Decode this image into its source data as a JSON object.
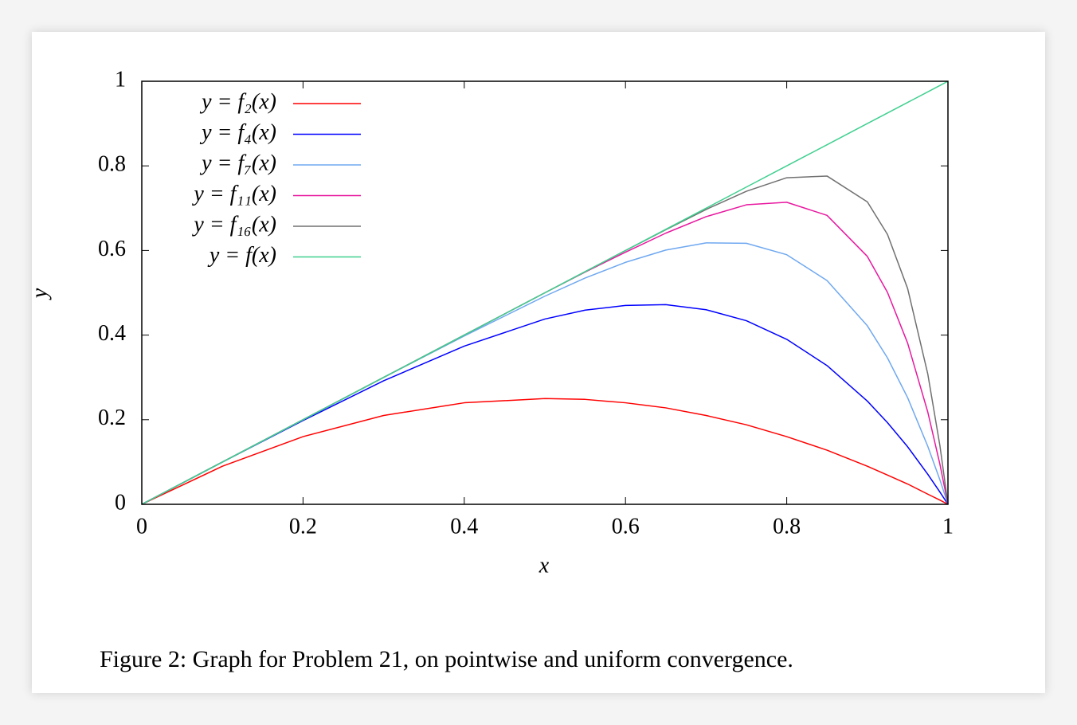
{
  "chart_data": {
    "type": "line",
    "xlabel": "x",
    "ylabel": "y",
    "caption": "Figure 2: Graph for Problem 21, on pointwise and uniform convergence.",
    "x": [
      0,
      0.1,
      0.2,
      0.3,
      0.4,
      0.5,
      0.55,
      0.6,
      0.65,
      0.7,
      0.75,
      0.8,
      0.85,
      0.9,
      0.925,
      0.95,
      0.975,
      0.99,
      1
    ],
    "series": [
      {
        "name": "y = f₂(x)",
        "color": "#ff0000",
        "values": [
          0,
          0.09,
          0.16,
          0.21,
          0.24,
          0.25,
          0.248,
          0.24,
          0.228,
          0.21,
          0.188,
          0.16,
          0.128,
          0.09,
          0.069,
          0.048,
          0.024,
          0.01,
          0
        ]
      },
      {
        "name": "y = f₄(x)",
        "color": "#0000ff",
        "values": [
          0,
          0.1,
          0.198,
          0.292,
          0.374,
          0.438,
          0.459,
          0.47,
          0.472,
          0.46,
          0.434,
          0.39,
          0.328,
          0.244,
          0.193,
          0.136,
          0.071,
          0.029,
          0
        ]
      },
      {
        "name": "y = f₇(x)",
        "color": "#6fa8f0",
        "values": [
          0,
          0.1,
          0.2,
          0.3,
          0.398,
          0.492,
          0.535,
          0.572,
          0.601,
          0.618,
          0.617,
          0.59,
          0.529,
          0.422,
          0.346,
          0.252,
          0.137,
          0.058,
          0
        ]
      },
      {
        "name": "y = f₁₁(x)",
        "color": "#e8179f",
        "values": [
          0,
          0.1,
          0.2,
          0.3,
          0.4,
          0.5,
          0.549,
          0.596,
          0.641,
          0.68,
          0.708,
          0.714,
          0.683,
          0.586,
          0.501,
          0.381,
          0.218,
          0.095,
          0
        ]
      },
      {
        "name": "y = f₁₆(x)",
        "color": "#707070",
        "values": [
          0,
          0.1,
          0.2,
          0.3,
          0.4,
          0.5,
          0.55,
          0.6,
          0.649,
          0.697,
          0.74,
          0.772,
          0.776,
          0.715,
          0.638,
          0.51,
          0.308,
          0.139,
          0
        ]
      },
      {
        "name": "y = f(x)",
        "color": "#40d090",
        "values": [
          0,
          0.1,
          0.2,
          0.3,
          0.4,
          0.5,
          0.55,
          0.6,
          0.65,
          0.7,
          0.75,
          0.8,
          0.85,
          0.9,
          0.925,
          0.95,
          0.975,
          0.99,
          1
        ]
      }
    ],
    "xlim": [
      0,
      1
    ],
    "ylim": [
      0,
      1
    ],
    "xticks": [
      0,
      0.2,
      0.4,
      0.6,
      0.8,
      1
    ],
    "yticks": [
      0,
      0.2,
      0.4,
      0.6,
      0.8,
      1
    ],
    "legend": "top-left"
  }
}
